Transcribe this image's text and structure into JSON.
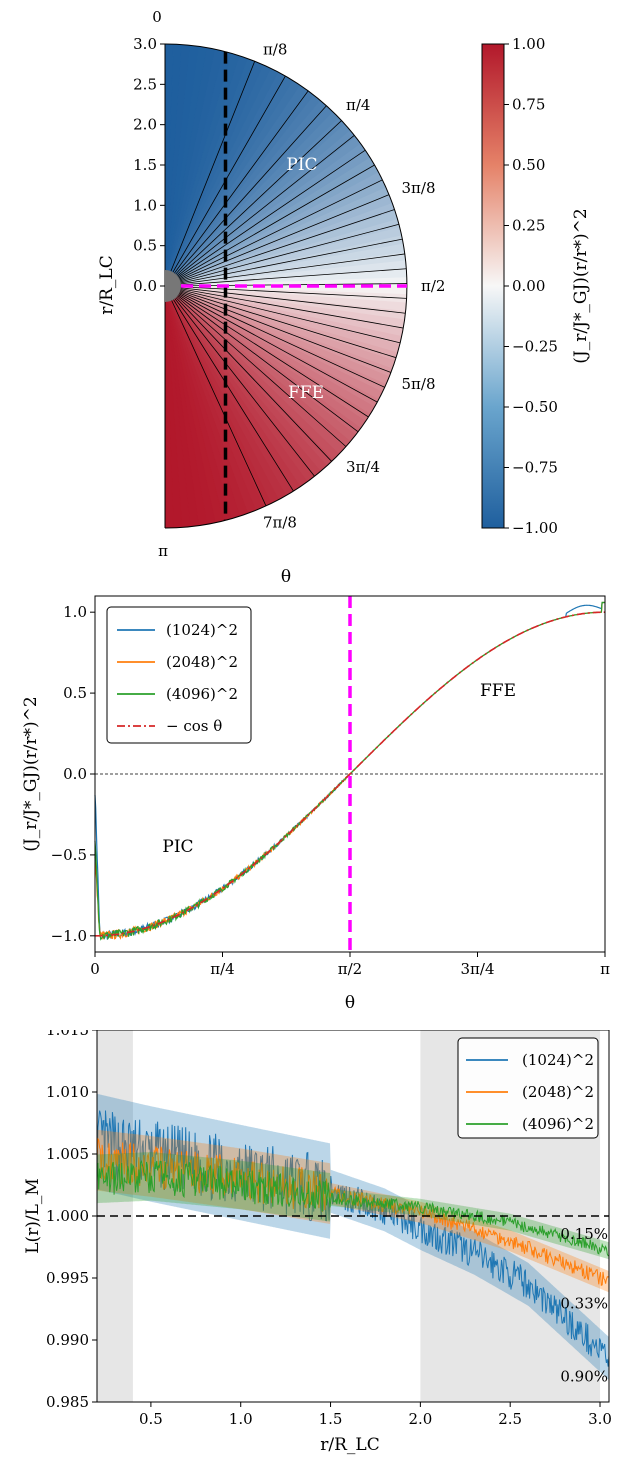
{
  "chart_data": [
    {
      "type": "heatmap",
      "subtype": "half-disk colormap",
      "ylabel": "r/R_LC",
      "xlabel": "θ",
      "ylim": [
        -3.0,
        3.0
      ],
      "yticks": [
        "3.0",
        "2.5",
        "2.0",
        "1.5",
        "1.0",
        "0.5",
        "0.0"
      ],
      "theta_labels": [
        "0",
        "π/8",
        "π/4",
        "3π/8",
        "π/2",
        "5π/8",
        "3π/4",
        "7π/8",
        "π"
      ],
      "region_labels": [
        "PIC",
        "FFE"
      ],
      "colorbar": {
        "label": "(J_r/J*_GJ)(r/r*)^2",
        "range": [
          -1.0,
          1.0
        ],
        "ticks": [
          "1.00",
          "0.75",
          "0.50",
          "0.25",
          "0.00",
          "−0.25",
          "−0.50",
          "−0.75",
          "−1.00"
        ],
        "cmap": "RdBu_r",
        "colors": {
          "low": "#1f5f9e",
          "mid": "#f7f7f7",
          "high": "#b2182b"
        }
      },
      "markers": {
        "vertical_dashed_x": 0.75,
        "horizontal_dashed_color": "#ff00ff"
      },
      "field_lines": 31
    },
    {
      "type": "line",
      "xlabel": "θ",
      "ylabel": "(J_r/J*_GJ)(r/r*)^2",
      "xticks": [
        "0",
        "π/4",
        "π/2",
        "3π/4",
        "π"
      ],
      "yticks": [
        "1.0",
        "0.5",
        "0.0",
        "−0.5",
        "−1.0"
      ],
      "xlim": [
        0,
        3.1416
      ],
      "ylim": [
        -1.1,
        1.1
      ],
      "annotations": [
        "FFE",
        "PIC"
      ],
      "vline_x": 1.5708,
      "hline_y": 0.0,
      "legend_position": "top-left",
      "series": [
        {
          "name": "(1024)^2",
          "color": "#1f77b4",
          "formula": "-cos(theta)",
          "noise_region": "theta < pi/2"
        },
        {
          "name": "(2048)^2",
          "color": "#ff7f0e",
          "formula": "-cos(theta)",
          "noise_region": "theta < pi/2"
        },
        {
          "name": "(4096)^2",
          "color": "#2ca02c",
          "formula": "-cos(theta)",
          "noise_region": "theta < pi/2"
        },
        {
          "name": "− cos θ",
          "color": "#d62728",
          "style": "dashdot"
        }
      ]
    },
    {
      "type": "line",
      "xlabel": "r/R_LC",
      "ylabel": "L(r)/L_M",
      "xticks": [
        "0.5",
        "1.0",
        "1.5",
        "2.0",
        "2.5",
        "3.0"
      ],
      "yticks": [
        "1.015",
        "1.010",
        "1.005",
        "1.000",
        "0.995",
        "0.990",
        "0.985"
      ],
      "xlim": [
        0.2,
        3.05
      ],
      "ylim": [
        0.985,
        1.015
      ],
      "hline_y": 1.0,
      "shaded_x_ranges": [
        [
          0.2,
          0.4
        ],
        [
          2.0,
          3.0
        ]
      ],
      "legend_position": "top-right",
      "series": [
        {
          "name": "(1024)^2",
          "color": "#1f77b4",
          "end_label": "0.90%",
          "x": [
            0.2,
            0.5,
            1.0,
            1.5,
            1.8,
            2.0,
            2.3,
            2.6,
            2.9,
            3.05
          ],
          "y": [
            1.006,
            1.005,
            1.0035,
            1.002,
            1.0005,
            0.999,
            0.997,
            0.9945,
            0.9905,
            0.9885
          ]
        },
        {
          "name": "(2048)^2",
          "color": "#ff7f0e",
          "end_label": "0.33%",
          "x": [
            0.2,
            0.5,
            1.0,
            1.5,
            2.0,
            2.5,
            3.05
          ],
          "y": [
            1.0045,
            1.004,
            1.003,
            1.0018,
            1.0003,
            0.998,
            0.9947
          ]
        },
        {
          "name": "(4096)^2",
          "color": "#2ca02c",
          "end_label": "0.15%",
          "x": [
            0.2,
            0.5,
            1.0,
            1.5,
            2.0,
            2.5,
            3.05
          ],
          "y": [
            1.003,
            1.0032,
            1.0025,
            1.0015,
            1.0007,
            0.9995,
            0.9972
          ]
        }
      ]
    }
  ]
}
